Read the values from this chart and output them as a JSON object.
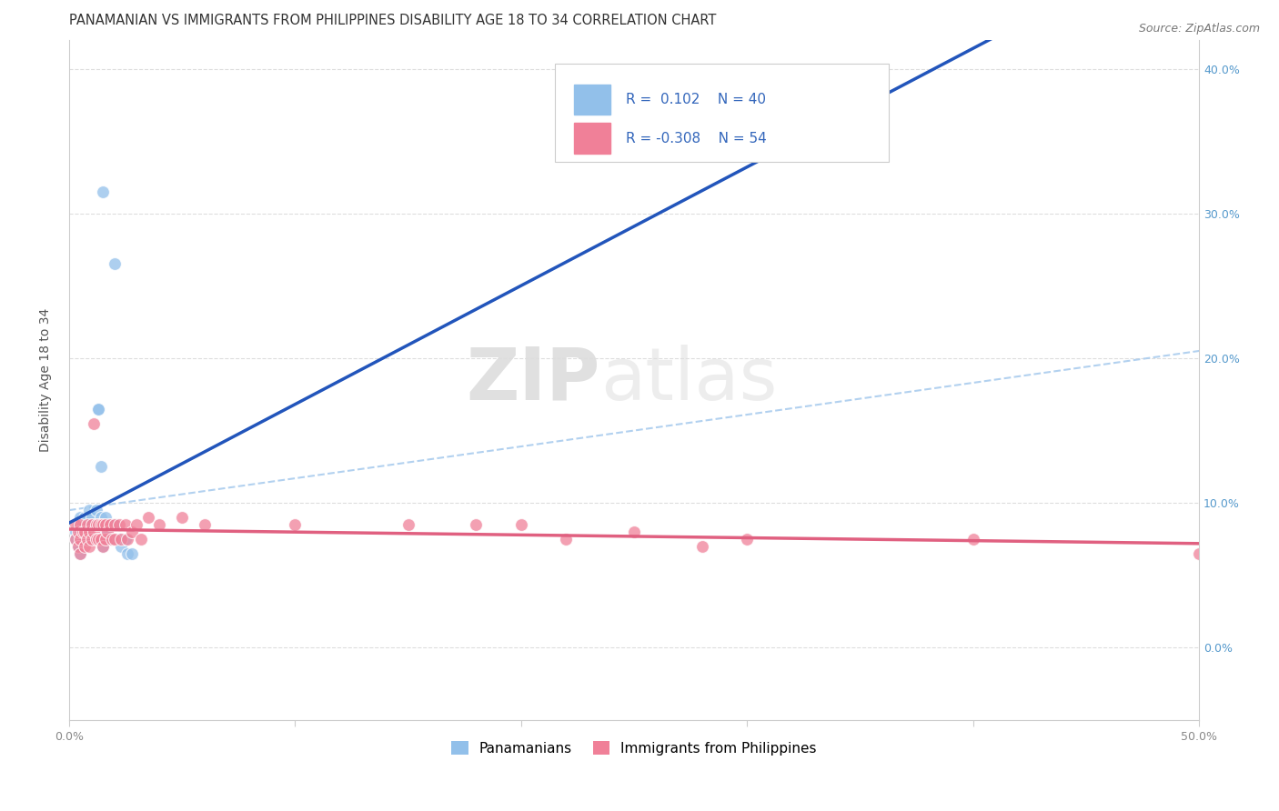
{
  "title": "PANAMANIAN VS IMMIGRANTS FROM PHILIPPINES DISABILITY AGE 18 TO 34 CORRELATION CHART",
  "source": "Source: ZipAtlas.com",
  "ylabel": "Disability Age 18 to 34",
  "xlim": [
    0.0,
    0.5
  ],
  "ylim": [
    -0.05,
    0.42
  ],
  "panamanian_R": 0.102,
  "panamanian_N": 40,
  "philippines_R": -0.308,
  "philippines_N": 54,
  "blue_color": "#92C0EA",
  "pink_color": "#F08098",
  "blue_line_color": "#2255BB",
  "pink_line_color": "#E06080",
  "dashed_line_color": "#AACCEE",
  "background_color": "#FFFFFF",
  "grid_color": "#DDDDDD",
  "watermark_zip": "ZIP",
  "watermark_atlas": "atlas",
  "legend_entry1": "Panamanians",
  "legend_entry2": "Immigrants from Philippines",
  "pan_x": [
    0.003,
    0.003,
    0.004,
    0.004,
    0.005,
    0.005,
    0.005,
    0.006,
    0.006,
    0.007,
    0.007,
    0.007,
    0.008,
    0.008,
    0.009,
    0.009,
    0.01,
    0.01,
    0.01,
    0.012,
    0.012,
    0.013,
    0.013,
    0.014,
    0.014,
    0.015,
    0.015,
    0.016,
    0.016,
    0.017,
    0.018,
    0.019,
    0.02,
    0.022,
    0.023,
    0.025,
    0.026,
    0.028,
    0.015,
    0.02
  ],
  "pan_y": [
    0.08,
    0.075,
    0.085,
    0.07,
    0.09,
    0.08,
    0.065,
    0.085,
    0.075,
    0.09,
    0.085,
    0.075,
    0.09,
    0.08,
    0.095,
    0.085,
    0.09,
    0.085,
    0.075,
    0.095,
    0.085,
    0.165,
    0.165,
    0.125,
    0.09,
    0.085,
    0.07,
    0.09,
    0.08,
    0.075,
    0.085,
    0.075,
    0.085,
    0.075,
    0.07,
    0.075,
    0.065,
    0.065,
    0.315,
    0.265
  ],
  "phi_x": [
    0.003,
    0.003,
    0.004,
    0.004,
    0.005,
    0.005,
    0.005,
    0.006,
    0.007,
    0.007,
    0.008,
    0.008,
    0.009,
    0.009,
    0.01,
    0.01,
    0.011,
    0.011,
    0.012,
    0.012,
    0.013,
    0.013,
    0.014,
    0.014,
    0.015,
    0.015,
    0.016,
    0.016,
    0.017,
    0.018,
    0.019,
    0.02,
    0.02,
    0.022,
    0.023,
    0.025,
    0.026,
    0.028,
    0.03,
    0.032,
    0.035,
    0.04,
    0.05,
    0.06,
    0.1,
    0.15,
    0.18,
    0.2,
    0.22,
    0.25,
    0.28,
    0.3,
    0.4,
    0.5
  ],
  "phi_y": [
    0.085,
    0.075,
    0.08,
    0.07,
    0.085,
    0.075,
    0.065,
    0.08,
    0.08,
    0.07,
    0.085,
    0.075,
    0.08,
    0.07,
    0.085,
    0.075,
    0.155,
    0.08,
    0.085,
    0.075,
    0.085,
    0.075,
    0.085,
    0.075,
    0.085,
    0.07,
    0.085,
    0.075,
    0.08,
    0.085,
    0.075,
    0.085,
    0.075,
    0.085,
    0.075,
    0.085,
    0.075,
    0.08,
    0.085,
    0.075,
    0.09,
    0.085,
    0.09,
    0.085,
    0.085,
    0.085,
    0.085,
    0.085,
    0.075,
    0.08,
    0.07,
    0.075,
    0.075,
    0.065
  ],
  "title_fontsize": 10.5,
  "axis_label_fontsize": 10,
  "tick_fontsize": 9,
  "legend_fontsize": 11,
  "source_fontsize": 9
}
